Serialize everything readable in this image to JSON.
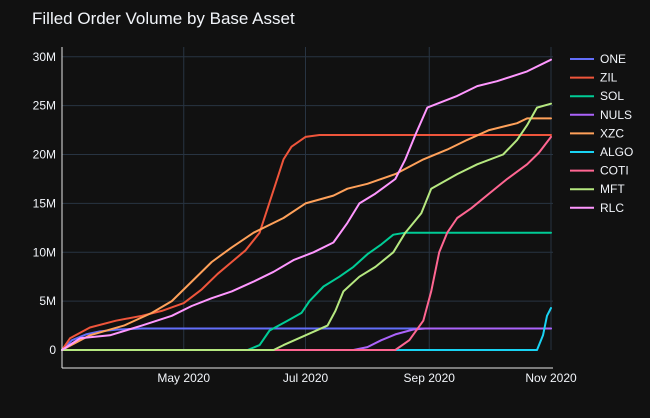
{
  "chart_data": {
    "type": "line",
    "title": "Filled Order Volume by Base Asset",
    "xlabel": "",
    "ylabel": "",
    "x_range": [
      "2020-03-01",
      "2020-11-02"
    ],
    "ylim": [
      0,
      31000000
    ],
    "x_ticks": [
      {
        "date": "2020-05-01",
        "label": "May 2020"
      },
      {
        "date": "2020-07-01",
        "label": "Jul 2020"
      },
      {
        "date": "2020-09-01",
        "label": "Sep 2020"
      },
      {
        "date": "2020-11-01",
        "label": "Nov 2020"
      }
    ],
    "y_ticks": [
      {
        "value": 0,
        "label": "0"
      },
      {
        "value": 5000000,
        "label": "5M"
      },
      {
        "value": 10000000,
        "label": "10M"
      },
      {
        "value": 15000000,
        "label": "15M"
      },
      {
        "value": 20000000,
        "label": "20M"
      },
      {
        "value": 25000000,
        "label": "25M"
      },
      {
        "value": 30000000,
        "label": "30M"
      }
    ],
    "grid": true,
    "legend_position": "right",
    "series": [
      {
        "name": "ONE",
        "color": "#636efa",
        "points": [
          [
            "2020-03-01",
            0
          ],
          [
            "2020-03-06",
            1000000
          ],
          [
            "2020-03-13",
            1600000
          ],
          [
            "2020-03-20",
            1900000
          ],
          [
            "2020-03-29",
            2100000
          ],
          [
            "2020-04-10",
            2200000
          ],
          [
            "2020-11-01",
            2200000
          ]
        ]
      },
      {
        "name": "ZIL",
        "color": "#ef553b",
        "points": [
          [
            "2020-03-01",
            0
          ],
          [
            "2020-03-05",
            1200000
          ],
          [
            "2020-03-15",
            2300000
          ],
          [
            "2020-03-28",
            3000000
          ],
          [
            "2020-04-10",
            3500000
          ],
          [
            "2020-04-20",
            4000000
          ],
          [
            "2020-05-01",
            4800000
          ],
          [
            "2020-05-10",
            6200000
          ],
          [
            "2020-05-18",
            7800000
          ],
          [
            "2020-05-25",
            9000000
          ],
          [
            "2020-06-01",
            10200000
          ],
          [
            "2020-06-08",
            12000000
          ],
          [
            "2020-06-12",
            14500000
          ],
          [
            "2020-06-16",
            17000000
          ],
          [
            "2020-06-20",
            19500000
          ],
          [
            "2020-06-24",
            20800000
          ],
          [
            "2020-07-01",
            21800000
          ],
          [
            "2020-07-08",
            22000000
          ],
          [
            "2020-11-01",
            22000000
          ]
        ]
      },
      {
        "name": "SOL",
        "color": "#00cc96",
        "points": [
          [
            "2020-03-01",
            0
          ],
          [
            "2020-06-02",
            0
          ],
          [
            "2020-06-08",
            500000
          ],
          [
            "2020-06-13",
            2000000
          ],
          [
            "2020-06-22",
            3000000
          ],
          [
            "2020-06-29",
            3800000
          ],
          [
            "2020-07-03",
            5000000
          ],
          [
            "2020-07-10",
            6500000
          ],
          [
            "2020-07-18",
            7500000
          ],
          [
            "2020-07-25",
            8500000
          ],
          [
            "2020-08-01",
            9800000
          ],
          [
            "2020-08-08",
            10800000
          ],
          [
            "2020-08-14",
            11800000
          ],
          [
            "2020-08-20",
            12000000
          ],
          [
            "2020-11-01",
            12000000
          ]
        ]
      },
      {
        "name": "NULS",
        "color": "#ab63fa",
        "points": [
          [
            "2020-03-01",
            0
          ],
          [
            "2020-07-25",
            0
          ],
          [
            "2020-08-01",
            300000
          ],
          [
            "2020-08-08",
            1000000
          ],
          [
            "2020-08-15",
            1600000
          ],
          [
            "2020-08-24",
            2100000
          ],
          [
            "2020-08-30",
            2200000
          ],
          [
            "2020-11-01",
            2200000
          ]
        ]
      },
      {
        "name": "XZC",
        "color": "#ffa15a",
        "points": [
          [
            "2020-03-01",
            0
          ],
          [
            "2020-03-15",
            1500000
          ],
          [
            "2020-04-01",
            2500000
          ],
          [
            "2020-04-15",
            3800000
          ],
          [
            "2020-04-25",
            5000000
          ],
          [
            "2020-05-05",
            7000000
          ],
          [
            "2020-05-15",
            9000000
          ],
          [
            "2020-05-25",
            10500000
          ],
          [
            "2020-06-05",
            12000000
          ],
          [
            "2020-06-20",
            13500000
          ],
          [
            "2020-07-01",
            15000000
          ],
          [
            "2020-07-15",
            15800000
          ],
          [
            "2020-07-22",
            16500000
          ],
          [
            "2020-08-01",
            17000000
          ],
          [
            "2020-08-15",
            18000000
          ],
          [
            "2020-08-29",
            19500000
          ],
          [
            "2020-09-10",
            20500000
          ],
          [
            "2020-09-20",
            21500000
          ],
          [
            "2020-10-01",
            22500000
          ],
          [
            "2020-10-15",
            23200000
          ],
          [
            "2020-10-20",
            23700000
          ],
          [
            "2020-11-01",
            23700000
          ]
        ]
      },
      {
        "name": "ALGO",
        "color": "#19d3f3",
        "points": [
          [
            "2020-03-01",
            0
          ],
          [
            "2020-10-25",
            0
          ],
          [
            "2020-10-28",
            1500000
          ],
          [
            "2020-10-30",
            3500000
          ],
          [
            "2020-11-01",
            4300000
          ]
        ]
      },
      {
        "name": "COTI",
        "color": "#ff6692",
        "points": [
          [
            "2020-03-01",
            0
          ],
          [
            "2020-08-15",
            0
          ],
          [
            "2020-08-22",
            1000000
          ],
          [
            "2020-08-29",
            3000000
          ],
          [
            "2020-09-02",
            6000000
          ],
          [
            "2020-09-06",
            10000000
          ],
          [
            "2020-09-10",
            12000000
          ],
          [
            "2020-09-15",
            13500000
          ],
          [
            "2020-09-22",
            14500000
          ],
          [
            "2020-10-01",
            16000000
          ],
          [
            "2020-10-10",
            17500000
          ],
          [
            "2020-10-20",
            19000000
          ],
          [
            "2020-10-26",
            20200000
          ],
          [
            "2020-11-01",
            21800000
          ]
        ]
      },
      {
        "name": "MFT",
        "color": "#b6e880",
        "points": [
          [
            "2020-03-01",
            0
          ],
          [
            "2020-06-15",
            0
          ],
          [
            "2020-06-20",
            500000
          ],
          [
            "2020-07-01",
            1500000
          ],
          [
            "2020-07-12",
            2500000
          ],
          [
            "2020-07-16",
            4000000
          ],
          [
            "2020-07-20",
            6000000
          ],
          [
            "2020-07-28",
            7500000
          ],
          [
            "2020-08-05",
            8500000
          ],
          [
            "2020-08-14",
            10000000
          ],
          [
            "2020-08-20",
            12000000
          ],
          [
            "2020-08-28",
            14000000
          ],
          [
            "2020-09-02",
            16500000
          ],
          [
            "2020-09-15",
            18000000
          ],
          [
            "2020-09-25",
            19000000
          ],
          [
            "2020-10-08",
            20000000
          ],
          [
            "2020-10-15",
            21500000
          ],
          [
            "2020-10-20",
            23000000
          ],
          [
            "2020-10-25",
            24800000
          ],
          [
            "2020-11-01",
            25200000
          ]
        ]
      },
      {
        "name": "RLC",
        "color": "#ff97ff",
        "points": [
          [
            "2020-03-01",
            0
          ],
          [
            "2020-03-10",
            1200000
          ],
          [
            "2020-03-25",
            1500000
          ],
          [
            "2020-04-10",
            2500000
          ],
          [
            "2020-04-25",
            3500000
          ],
          [
            "2020-05-05",
            4500000
          ],
          [
            "2020-05-15",
            5300000
          ],
          [
            "2020-05-25",
            6000000
          ],
          [
            "2020-06-05",
            7000000
          ],
          [
            "2020-06-15",
            8000000
          ],
          [
            "2020-06-25",
            9200000
          ],
          [
            "2020-07-05",
            10000000
          ],
          [
            "2020-07-15",
            11000000
          ],
          [
            "2020-07-22",
            13000000
          ],
          [
            "2020-07-28",
            15000000
          ],
          [
            "2020-08-05",
            16000000
          ],
          [
            "2020-08-15",
            17500000
          ],
          [
            "2020-08-20",
            19500000
          ],
          [
            "2020-08-25",
            22000000
          ],
          [
            "2020-08-31",
            24800000
          ],
          [
            "2020-09-15",
            26000000
          ],
          [
            "2020-09-25",
            27000000
          ],
          [
            "2020-10-05",
            27500000
          ],
          [
            "2020-10-20",
            28500000
          ],
          [
            "2020-11-01",
            29700000
          ]
        ]
      }
    ]
  }
}
